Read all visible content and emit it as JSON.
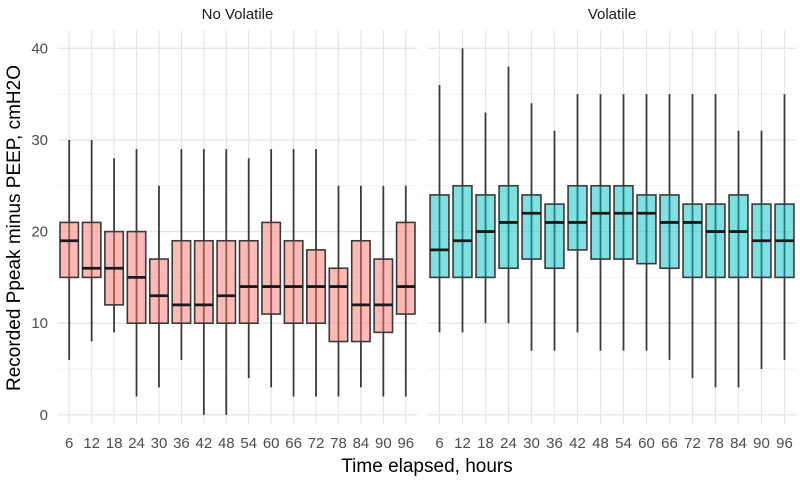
{
  "chart_data": {
    "type": "boxplot",
    "xlabel": "Time elapsed, hours",
    "ylabel": "Recorded Ppeak minus PEEP, cmH2O",
    "ylim": [
      -1,
      42
    ],
    "yticks": [
      0,
      10,
      20,
      30,
      40
    ],
    "grid": true,
    "categories": [
      "6",
      "12",
      "18",
      "24",
      "30",
      "36",
      "42",
      "48",
      "54",
      "60",
      "66",
      "72",
      "78",
      "84",
      "90",
      "96"
    ],
    "colors": {
      "No Volatile": {
        "fill": "#f8766d",
        "stroke": "#3a3a3a"
      },
      "Volatile": {
        "fill": "#00bfc4",
        "stroke": "#3a3a3a"
      }
    },
    "panels": [
      {
        "name": "No Volatile",
        "boxes": [
          {
            "x": "6",
            "min": 6,
            "q1": 15,
            "median": 19,
            "q3": 21,
            "max": 30
          },
          {
            "x": "12",
            "min": 8,
            "q1": 15,
            "median": 16,
            "q3": 21,
            "max": 30
          },
          {
            "x": "18",
            "min": 9,
            "q1": 12,
            "median": 16,
            "q3": 20,
            "max": 28
          },
          {
            "x": "24",
            "min": 2,
            "q1": 10,
            "median": 15,
            "q3": 20,
            "max": 29
          },
          {
            "x": "30",
            "min": 3,
            "q1": 10,
            "median": 13,
            "q3": 17,
            "max": 25
          },
          {
            "x": "36",
            "min": 6,
            "q1": 10,
            "median": 12,
            "q3": 19,
            "max": 29
          },
          {
            "x": "42",
            "min": 0,
            "q1": 10,
            "median": 12,
            "q3": 19,
            "max": 29
          },
          {
            "x": "48",
            "min": 0,
            "q1": 10,
            "median": 13,
            "q3": 19,
            "max": 29
          },
          {
            "x": "54",
            "min": 4,
            "q1": 10,
            "median": 14,
            "q3": 19,
            "max": 28
          },
          {
            "x": "60",
            "min": 3,
            "q1": 11,
            "median": 14,
            "q3": 21,
            "max": 29
          },
          {
            "x": "66",
            "min": 2,
            "q1": 10,
            "median": 14,
            "q3": 19,
            "max": 29
          },
          {
            "x": "72",
            "min": 2,
            "q1": 10,
            "median": 14,
            "q3": 18,
            "max": 29
          },
          {
            "x": "78",
            "min": 2,
            "q1": 8,
            "median": 14,
            "q3": 16,
            "max": 25
          },
          {
            "x": "84",
            "min": 3,
            "q1": 8,
            "median": 12,
            "q3": 19,
            "max": 25
          },
          {
            "x": "90",
            "min": 2,
            "q1": 9,
            "median": 12,
            "q3": 17,
            "max": 25
          },
          {
            "x": "96",
            "min": 2,
            "q1": 11,
            "median": 14,
            "q3": 21,
            "max": 25
          }
        ]
      },
      {
        "name": "Volatile",
        "boxes": [
          {
            "x": "6",
            "min": 9,
            "q1": 15,
            "median": 18,
            "q3": 24,
            "max": 36
          },
          {
            "x": "12",
            "min": 9,
            "q1": 15,
            "median": 19,
            "q3": 25,
            "max": 40
          },
          {
            "x": "18",
            "min": 10,
            "q1": 15,
            "median": 20,
            "q3": 24,
            "max": 33
          },
          {
            "x": "24",
            "min": 10,
            "q1": 16,
            "median": 21,
            "q3": 25,
            "max": 38
          },
          {
            "x": "30",
            "min": 7,
            "q1": 17,
            "median": 22,
            "q3": 24,
            "max": 34
          },
          {
            "x": "36",
            "min": 7,
            "q1": 16,
            "median": 21,
            "q3": 23,
            "max": 31
          },
          {
            "x": "42",
            "min": 9,
            "q1": 18,
            "median": 21,
            "q3": 25,
            "max": 35
          },
          {
            "x": "48",
            "min": 7,
            "q1": 17,
            "median": 22,
            "q3": 25,
            "max": 35
          },
          {
            "x": "54",
            "min": 7,
            "q1": 17,
            "median": 22,
            "q3": 25,
            "max": 35
          },
          {
            "x": "60",
            "min": 7,
            "q1": 16.5,
            "median": 22,
            "q3": 24,
            "max": 35
          },
          {
            "x": "66",
            "min": 6,
            "q1": 16,
            "median": 21,
            "q3": 24,
            "max": 35
          },
          {
            "x": "72",
            "min": 4,
            "q1": 15,
            "median": 21,
            "q3": 23,
            "max": 35
          },
          {
            "x": "78",
            "min": 3,
            "q1": 15,
            "median": 20,
            "q3": 23,
            "max": 35
          },
          {
            "x": "84",
            "min": 3,
            "q1": 15,
            "median": 20,
            "q3": 24,
            "max": 31
          },
          {
            "x": "90",
            "min": 5,
            "q1": 15,
            "median": 19,
            "q3": 23,
            "max": 31
          },
          {
            "x": "96",
            "min": 6,
            "q1": 15,
            "median": 19,
            "q3": 23,
            "max": 35
          }
        ]
      }
    ]
  }
}
